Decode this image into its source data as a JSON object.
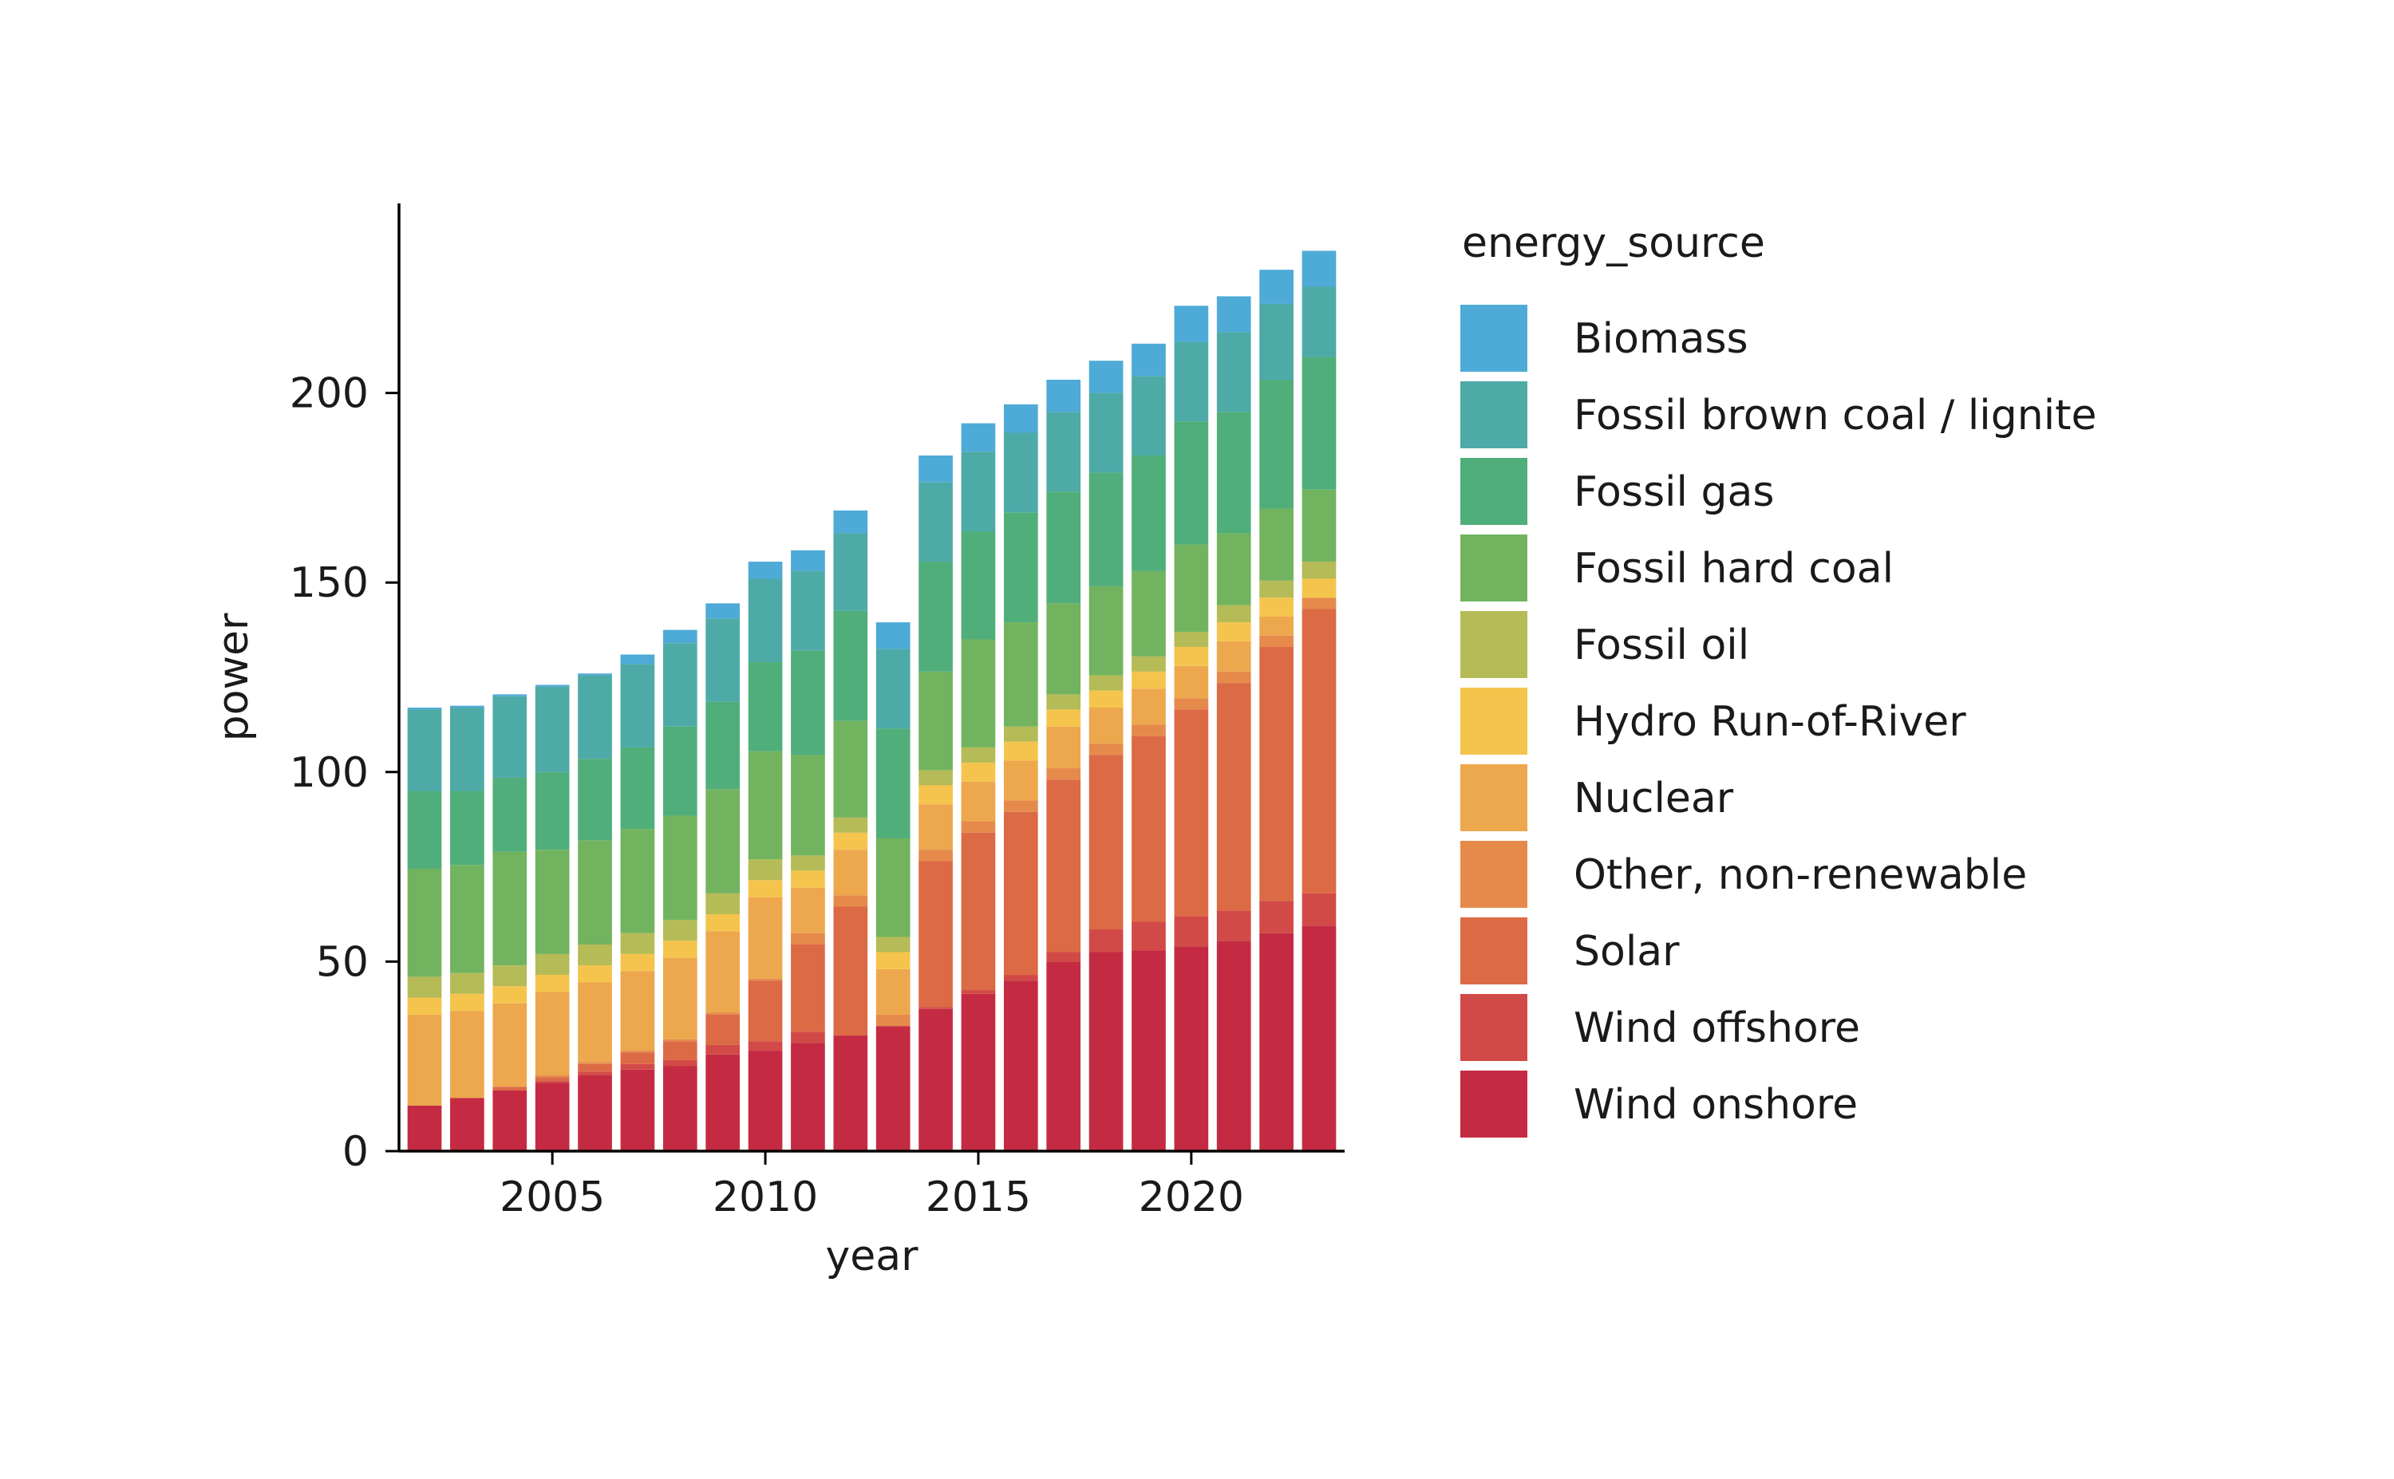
{
  "chart_data": {
    "type": "bar",
    "stacked": true,
    "xlabel": "year",
    "ylabel": "power",
    "xlim": [
      2001.4,
      2023.6
    ],
    "ylim": [
      0,
      250
    ],
    "xticks": [
      2005,
      2010,
      2015,
      2020
    ],
    "yticks": [
      0,
      50,
      100,
      150,
      200
    ],
    "grid": false,
    "legend_title": "energy_source",
    "legend_position": "right",
    "x": [
      2002,
      2003,
      2004,
      2005,
      2006,
      2007,
      2008,
      2009,
      2010,
      2011,
      2012,
      2013,
      2014,
      2015,
      2016,
      2017,
      2018,
      2019,
      2020,
      2021,
      2022,
      2023
    ],
    "series": [
      {
        "name": "Wind onshore",
        "color": "#c42b42",
        "values": [
          12,
          14,
          16,
          18,
          20,
          21.5,
          22.5,
          25.5,
          26.5,
          28.5,
          30.5,
          33,
          37.5,
          41.5,
          45,
          50,
          52.5,
          53,
          54,
          55.5,
          57.5,
          59.5
        ]
      },
      {
        "name": "Wind offshore",
        "color": "#d24a47",
        "values": [
          0,
          0,
          0,
          0.5,
          1,
          1.5,
          1.5,
          2.5,
          2.5,
          3,
          0,
          0,
          0.5,
          1,
          1.5,
          2.5,
          6,
          7.5,
          8,
          8,
          8.5,
          8.5
        ]
      },
      {
        "name": "Solar",
        "color": "#dc6a45",
        "values": [
          0,
          0,
          1,
          1,
          2,
          3,
          5,
          8,
          16,
          23,
          34,
          0,
          38.5,
          41.5,
          43,
          45.5,
          46,
          49,
          54.5,
          60,
          67,
          75
        ]
      },
      {
        "name": "Other, non-renewable",
        "color": "#e58a4b",
        "values": [
          0,
          0,
          0,
          0.5,
          0.5,
          0.5,
          0.5,
          0.5,
          0.5,
          3,
          3,
          3,
          3,
          3,
          3,
          3,
          3,
          3,
          3,
          3,
          3,
          3
        ]
      },
      {
        "name": "Nuclear",
        "color": "#eda74d",
        "values": [
          24,
          23,
          22,
          22,
          21,
          21,
          21.5,
          21.5,
          21.5,
          12,
          12,
          12,
          12,
          10.5,
          10.5,
          11,
          9.5,
          9.5,
          8.5,
          8,
          5,
          0
        ]
      },
      {
        "name": "Hydro Run-of-River",
        "color": "#f5c44c",
        "values": [
          4.5,
          4.5,
          4.5,
          4.5,
          4.5,
          4.5,
          4.5,
          4.5,
          4.5,
          4.5,
          4.5,
          4.5,
          5,
          5,
          5,
          4.5,
          4.5,
          4.5,
          5,
          5,
          5,
          5
        ]
      },
      {
        "name": "Fossil oil",
        "color": "#b5bb56",
        "values": [
          5.5,
          5.5,
          5.5,
          5.5,
          5.5,
          5.5,
          5.5,
          5.5,
          5.5,
          4,
          4,
          4,
          4,
          4,
          4,
          4,
          4,
          4,
          4,
          4.5,
          4.5,
          4.5
        ]
      },
      {
        "name": "Fossil hard coal",
        "color": "#72b35f",
        "values": [
          28.5,
          28.5,
          30,
          27.5,
          27.5,
          27.5,
          27.5,
          27.5,
          28.5,
          26.5,
          25.5,
          26,
          26,
          28.5,
          27.5,
          24,
          23.5,
          22.5,
          23,
          19,
          19,
          19
        ]
      },
      {
        "name": "Fossil gas",
        "color": "#50ae7a",
        "values": [
          20.5,
          19.5,
          19.5,
          20.5,
          21.5,
          21.5,
          23.5,
          23,
          23.5,
          27.5,
          29,
          29,
          29,
          28.5,
          29,
          29.5,
          30,
          30.5,
          32.5,
          32,
          34,
          35
        ]
      },
      {
        "name": "Fossil brown coal / lignite",
        "color": "#4daaa7",
        "values": [
          21.5,
          22,
          21.5,
          22.5,
          22,
          22,
          22,
          22,
          22,
          21,
          20.5,
          21,
          21,
          21,
          21,
          21,
          21,
          21,
          21,
          21,
          20,
          18.5
        ]
      },
      {
        "name": "Biomass",
        "color": "#4eaad6",
        "values": [
          0.5,
          0.5,
          0.5,
          0.5,
          0.5,
          2.5,
          3.5,
          4,
          4.5,
          5.5,
          6,
          7,
          7,
          7.5,
          7.5,
          8.5,
          8.5,
          8.5,
          9.5,
          9.5,
          9,
          9.5
        ]
      }
    ]
  }
}
